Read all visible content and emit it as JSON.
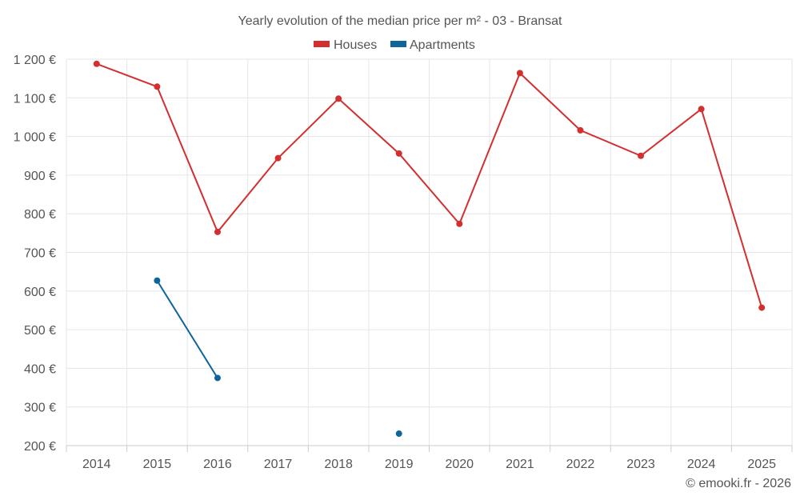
{
  "chart_data": {
    "type": "line",
    "title": "Yearly evolution of the median price per m² - 03 - Bransat",
    "categories": [
      "2014",
      "2015",
      "2016",
      "2017",
      "2018",
      "2019",
      "2020",
      "2021",
      "2022",
      "2023",
      "2024",
      "2025"
    ],
    "series": [
      {
        "name": "Houses",
        "color": "#d32f2f",
        "values": [
          1188,
          1129,
          753,
          944,
          1098,
          956,
          774,
          1164,
          1016,
          950,
          1071,
          557
        ]
      },
      {
        "name": "Apartments",
        "color": "#0d6599",
        "values": [
          null,
          627,
          375,
          null,
          null,
          231,
          null,
          null,
          null,
          null,
          null,
          null
        ]
      }
    ],
    "ylim": [
      200,
      1200
    ],
    "yticks": [
      200,
      300,
      400,
      500,
      600,
      700,
      800,
      900,
      1000,
      1100,
      1200
    ],
    "ytick_labels": [
      "200 €",
      "300 €",
      "400 €",
      "500 €",
      "600 €",
      "700 €",
      "800 €",
      "900 €",
      "1 000 €",
      "1 100 €",
      "1 200 €"
    ],
    "legend_position": "top-center",
    "grid": true
  },
  "credit": "© emooki.fr - 2026"
}
